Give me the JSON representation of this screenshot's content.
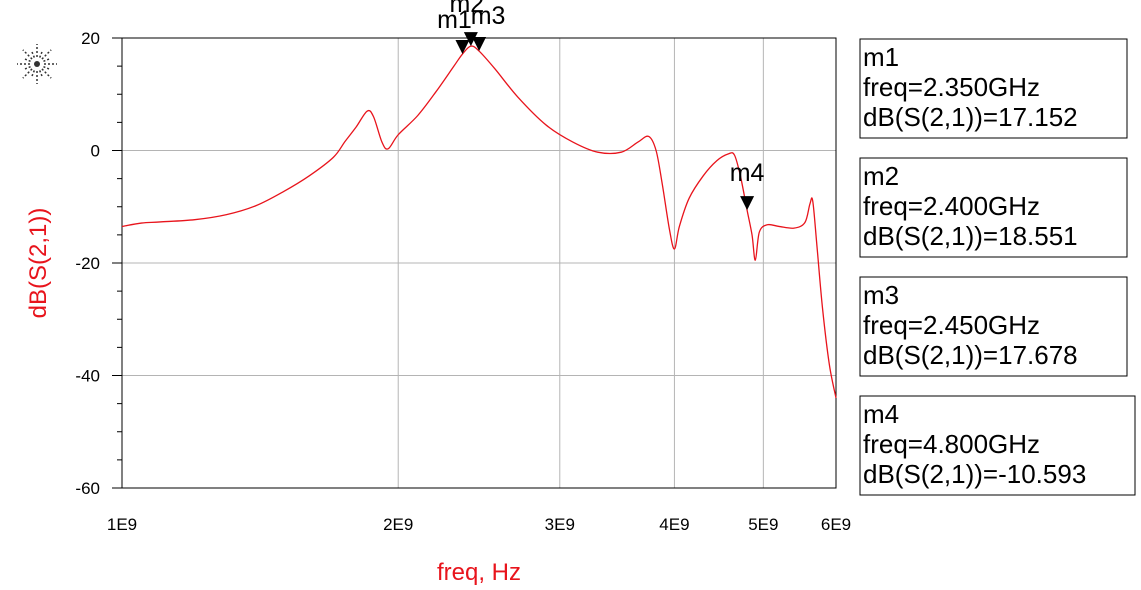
{
  "chart_data": {
    "type": "line",
    "xlabel": "freq, Hz",
    "ylabel": "dB(S(2,1))",
    "x_scale": "log",
    "xlim": [
      1000000000,
      6000000000
    ],
    "ylim": [
      -60,
      20
    ],
    "grid": true,
    "x_ticks": [
      {
        "value": 1000000000,
        "label": "1E9"
      },
      {
        "value": 2000000000,
        "label": "2E9"
      },
      {
        "value": 3000000000,
        "label": "3E9"
      },
      {
        "value": 4000000000,
        "label": "4E9"
      },
      {
        "value": 5000000000,
        "label": "5E9"
      },
      {
        "value": 6000000000,
        "label": "6E9"
      }
    ],
    "y_ticks": [
      {
        "value": 20,
        "label": "20"
      },
      {
        "value": 0,
        "label": "0"
      },
      {
        "value": -20,
        "label": "-20"
      },
      {
        "value": -40,
        "label": "-40"
      },
      {
        "value": -60,
        "label": "-60"
      }
    ],
    "series": [
      {
        "color": "#e8141c",
        "points": [
          [
            1000000000.0,
            -13.5
          ],
          [
            1050000000.0,
            -12.9
          ],
          [
            1100000000.0,
            -12.7
          ],
          [
            1200000000.0,
            -12.3
          ],
          [
            1300000000.0,
            -11.4
          ],
          [
            1400000000.0,
            -9.8
          ],
          [
            1500000000.0,
            -7.3
          ],
          [
            1600000000.0,
            -4.5
          ],
          [
            1700000000.0,
            -1.2
          ],
          [
            1750000000.0,
            1.6
          ],
          [
            1800000000.0,
            4.2
          ],
          [
            1850000000.0,
            7.0
          ],
          [
            1880000000.0,
            6.0
          ],
          [
            1920000000.0,
            1.5
          ],
          [
            1950000000.0,
            0.3
          ],
          [
            2000000000.0,
            2.8
          ],
          [
            2100000000.0,
            6.2
          ],
          [
            2200000000.0,
            10.5
          ],
          [
            2300000000.0,
            15.0
          ],
          [
            2350000000.0,
            17.152
          ],
          [
            2400000000.0,
            18.551
          ],
          [
            2450000000.0,
            17.678
          ],
          [
            2550000000.0,
            14.5
          ],
          [
            2700000000.0,
            9.5
          ],
          [
            2900000000.0,
            4.5
          ],
          [
            3100000000.0,
            1.5
          ],
          [
            3300000000.0,
            -0.3
          ],
          [
            3500000000.0,
            -0.3
          ],
          [
            3650000000.0,
            1.5
          ],
          [
            3750000000.0,
            2.5
          ],
          [
            3820000000.0,
            0.0
          ],
          [
            3880000000.0,
            -6.0
          ],
          [
            3950000000.0,
            -14.0
          ],
          [
            4000000000.0,
            -17.5
          ],
          [
            4050000000.0,
            -13.5
          ],
          [
            4150000000.0,
            -8.5
          ],
          [
            4300000000.0,
            -4.5
          ],
          [
            4450000000.0,
            -1.8
          ],
          [
            4580000000.0,
            -0.6
          ],
          [
            4650000000.0,
            -0.8
          ],
          [
            4720000000.0,
            -4.5
          ],
          [
            4800000000.0,
            -10.593
          ],
          [
            4860000000.0,
            -15.0
          ],
          [
            4900000000.0,
            -19.5
          ],
          [
            4950000000.0,
            -14.5
          ],
          [
            5050000000.0,
            -13.2
          ],
          [
            5200000000.0,
            -13.5
          ],
          [
            5400000000.0,
            -13.8
          ],
          [
            5550000000.0,
            -12.8
          ],
          [
            5620000000.0,
            -9.5
          ],
          [
            5660000000.0,
            -9.0
          ],
          [
            5720000000.0,
            -17.0
          ],
          [
            5800000000.0,
            -28.0
          ],
          [
            5900000000.0,
            -38.0
          ],
          [
            6000000000.0,
            -44.0
          ]
        ]
      }
    ],
    "markers": [
      {
        "name": "m1",
        "x": 2350000000,
        "y": 17.152,
        "line1": "freq=2.350GHz",
        "line2": "dB(S(2,1))=17.152"
      },
      {
        "name": "m2",
        "x": 2400000000,
        "y": 18.551,
        "line1": "freq=2.400GHz",
        "line2": "dB(S(2,1))=18.551"
      },
      {
        "name": "m3",
        "x": 2450000000,
        "y": 17.678,
        "line1": "freq=2.450GHz",
        "line2": "dB(S(2,1))=17.678"
      },
      {
        "name": "m4",
        "x": 4800000000,
        "y": -10.593,
        "line1": "freq=4.800GHz",
        "line2": "dB(S(2,1))=-10.593"
      }
    ]
  },
  "colors": {
    "trace": "#e8141c",
    "axis_title": "#e8141c",
    "grid": "#b4b4b4",
    "frame": "#000000"
  },
  "logo_icon": "keysight-starburst-icon"
}
